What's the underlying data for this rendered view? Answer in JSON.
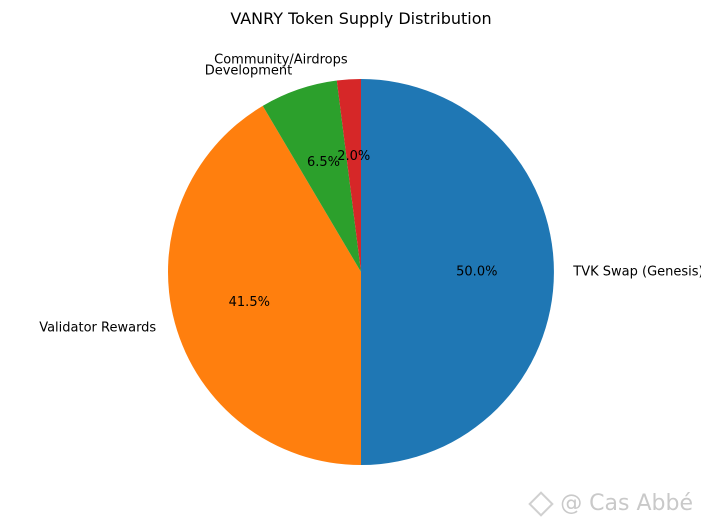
{
  "chart_data": {
    "type": "pie",
    "title": "VANRY Token Supply Distribution",
    "start_angle_deg": 90,
    "direction": "clockwise",
    "slices": [
      {
        "label": "TVK Swap (Genesis)",
        "value": 50.0,
        "pct_label": "50.0%",
        "color": "#1f77b4"
      },
      {
        "label": "Validator Rewards",
        "value": 41.5,
        "pct_label": "41.5%",
        "color": "#ff7f0e"
      },
      {
        "label": "Development",
        "value": 6.5,
        "pct_label": "6.5%",
        "color": "#2ca02c"
      },
      {
        "label": "Community/Airdrops",
        "value": 2.0,
        "pct_label": "2.0%",
        "color": "#d62728"
      }
    ]
  },
  "watermark": {
    "text": "@ Cas Abbé",
    "icon": "binance-logo-icon"
  }
}
